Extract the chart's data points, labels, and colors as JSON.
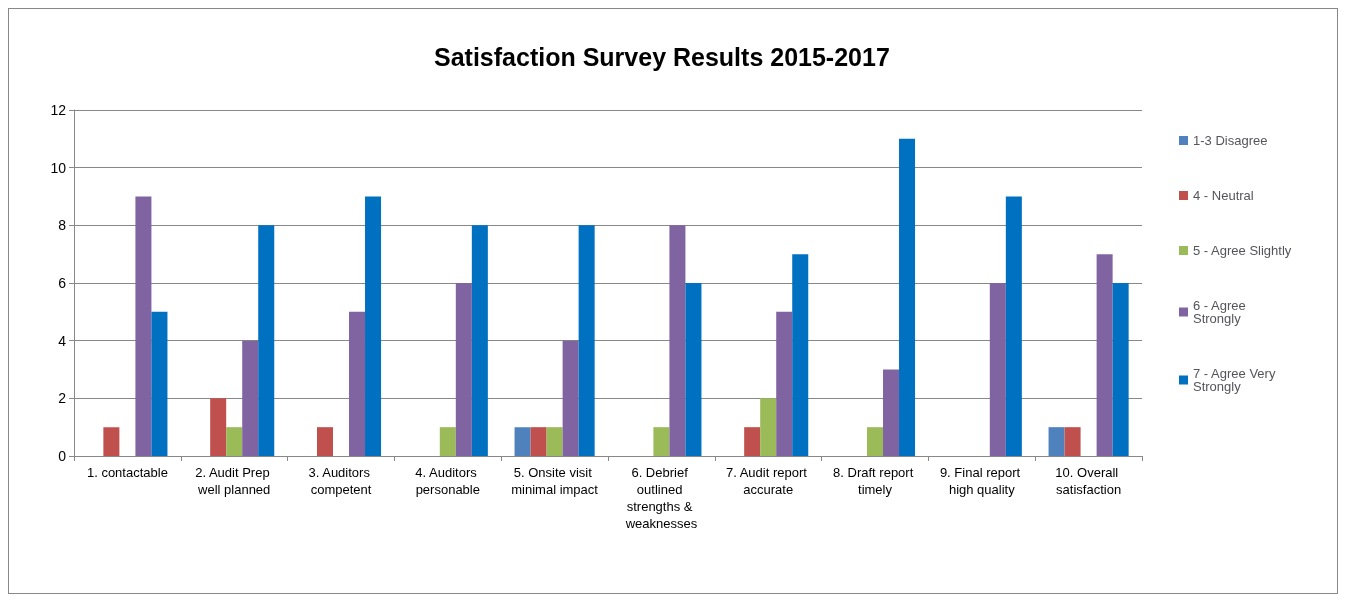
{
  "chart_data": {
    "type": "bar",
    "title": "Satisfaction Survey Results 2015-2017",
    "categories": [
      "1. contactable",
      "2. Audit Prep well planned",
      "3. Auditors competent",
      "4. Auditors personable",
      "5. Onsite visit minimal impact",
      "6. Debrief outlined strengths & weaknesses",
      "7. Audit report accurate",
      "8. Draft report timely",
      "9. Final report high quality",
      "10. Overall satisfaction"
    ],
    "series": [
      {
        "name": "1-3 Disagree",
        "color": "#4f81bd",
        "values": [
          0,
          0,
          0,
          0,
          1,
          0,
          0,
          0,
          0,
          1
        ]
      },
      {
        "name": "4 - Neutral",
        "color": "#c0504d",
        "values": [
          1,
          2,
          1,
          0,
          1,
          0,
          1,
          0,
          0,
          1
        ]
      },
      {
        "name": "5 - Agree Slightly",
        "color": "#9bbb59",
        "values": [
          0,
          1,
          0,
          1,
          1,
          1,
          2,
          1,
          0,
          0
        ]
      },
      {
        "name": "6 - Agree Strongly",
        "color": "#8064a2",
        "values": [
          9,
          4,
          5,
          6,
          4,
          8,
          5,
          3,
          6,
          7
        ]
      },
      {
        "name": "7 - Agree Very Strongly",
        "color": "#0070c0",
        "values": [
          5,
          8,
          9,
          8,
          8,
          6,
          7,
          11,
          9,
          6
        ]
      }
    ],
    "ylim": [
      0,
      12
    ],
    "yticks": [
      0,
      2,
      4,
      6,
      8,
      10,
      12
    ],
    "grid": "y",
    "legend": "right"
  }
}
